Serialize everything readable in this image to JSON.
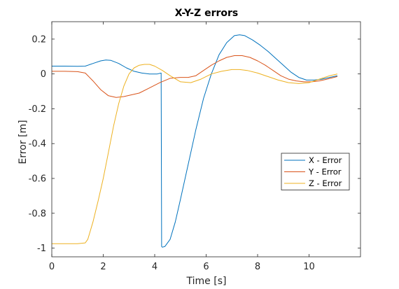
{
  "chart_data": {
    "type": "line",
    "title": "X-Y-Z errors",
    "xlabel": "Time [s]",
    "ylabel": "Error [m]",
    "xlim": [
      0,
      12
    ],
    "ylim": [
      -1.05,
      0.3
    ],
    "xticks": [
      0,
      2,
      4,
      6,
      8,
      10
    ],
    "yticks": [
      0.2,
      0,
      -0.2,
      -0.4,
      -0.6,
      -0.8,
      -1
    ],
    "ytick_labels": [
      "0.2",
      "0",
      "-0.2",
      "-0.4",
      "-0.6",
      "-0.8",
      "-1"
    ],
    "grid": false,
    "legend": "right",
    "series": [
      {
        "name": "X - Error",
        "color": "#0072BD",
        "x": [
          0,
          0.5,
          1.0,
          1.3,
          1.6,
          1.9,
          2.1,
          2.3,
          2.6,
          2.9,
          3.2,
          3.5,
          3.8,
          4.1,
          4.25,
          4.27,
          4.3,
          4.4,
          4.6,
          4.8,
          5.0,
          5.3,
          5.6,
          5.9,
          6.2,
          6.5,
          6.8,
          7.1,
          7.3,
          7.5,
          7.8,
          8.1,
          8.4,
          8.7,
          9.0,
          9.3,
          9.6,
          9.9,
          10.2,
          10.5,
          10.8,
          11.1
        ],
        "y": [
          0.045,
          0.045,
          0.044,
          0.045,
          0.06,
          0.075,
          0.08,
          0.078,
          0.06,
          0.035,
          0.015,
          0.005,
          0.0,
          0.0,
          0.005,
          -0.99,
          -0.995,
          -0.99,
          -0.95,
          -0.85,
          -0.72,
          -0.52,
          -0.32,
          -0.14,
          0.0,
          0.11,
          0.18,
          0.22,
          0.225,
          0.22,
          0.195,
          0.165,
          0.13,
          0.09,
          0.05,
          0.01,
          -0.02,
          -0.035,
          -0.035,
          -0.03,
          -0.02,
          -0.01
        ]
      },
      {
        "name": "Y - Error",
        "color": "#D95319",
        "x": [
          0,
          0.5,
          1.0,
          1.3,
          1.6,
          1.9,
          2.2,
          2.5,
          2.8,
          3.1,
          3.4,
          3.8,
          4.2,
          4.6,
          5.0,
          5.3,
          5.6,
          5.9,
          6.2,
          6.5,
          6.8,
          7.1,
          7.4,
          7.7,
          8.0,
          8.3,
          8.6,
          8.9,
          9.2,
          9.5,
          9.8,
          10.1,
          10.4,
          10.7,
          11.1
        ],
        "y": [
          0.015,
          0.015,
          0.013,
          0.005,
          -0.04,
          -0.09,
          -0.125,
          -0.135,
          -0.13,
          -0.12,
          -0.11,
          -0.08,
          -0.05,
          -0.025,
          -0.02,
          -0.02,
          -0.01,
          0.02,
          0.05,
          0.075,
          0.095,
          0.105,
          0.105,
          0.095,
          0.075,
          0.05,
          0.02,
          -0.01,
          -0.03,
          -0.04,
          -0.045,
          -0.045,
          -0.04,
          -0.03,
          -0.015
        ]
      },
      {
        "name": "Z - Error",
        "color": "#EDB120",
        "x": [
          0,
          0.5,
          1.0,
          1.3,
          1.4,
          1.6,
          1.8,
          2.0,
          2.2,
          2.4,
          2.6,
          2.8,
          3.0,
          3.2,
          3.4,
          3.6,
          3.8,
          4.0,
          4.3,
          4.6,
          5.0,
          5.4,
          5.8,
          6.2,
          6.6,
          7.0,
          7.3,
          7.6,
          8.0,
          8.4,
          8.8,
          9.2,
          9.6,
          10.0,
          10.4,
          10.8,
          11.1
        ],
        "y": [
          -0.975,
          -0.975,
          -0.975,
          -0.97,
          -0.95,
          -0.85,
          -0.73,
          -0.6,
          -0.45,
          -0.3,
          -0.17,
          -0.07,
          0.0,
          0.035,
          0.05,
          0.055,
          0.055,
          0.045,
          0.02,
          -0.01,
          -0.045,
          -0.05,
          -0.03,
          0.0,
          0.015,
          0.025,
          0.025,
          0.02,
          0.005,
          -0.015,
          -0.035,
          -0.05,
          -0.055,
          -0.05,
          -0.03,
          -0.01,
          0.0
        ]
      }
    ]
  }
}
